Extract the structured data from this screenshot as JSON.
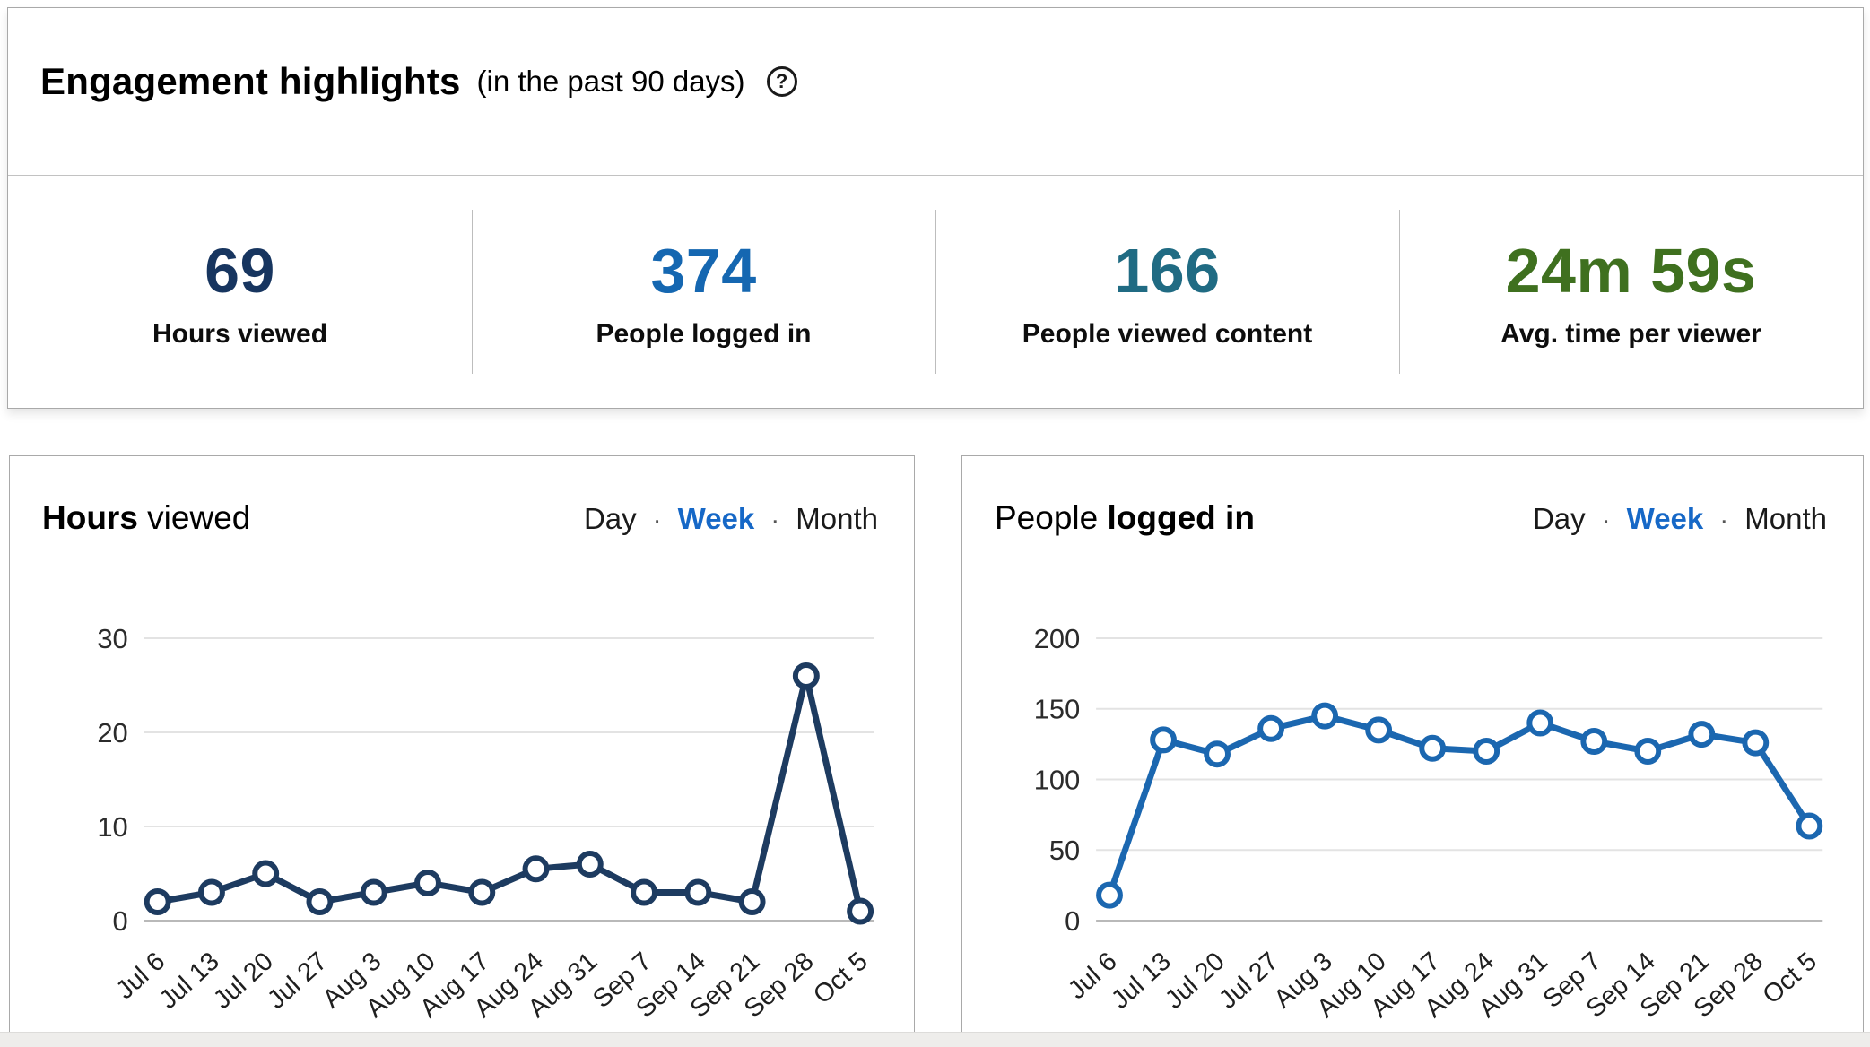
{
  "header": {
    "title": "Engagement highlights",
    "subtitle": "(in the past 90 days)",
    "help_icon": "?"
  },
  "stats": [
    {
      "value": "69",
      "label": "Hours viewed",
      "color": "#17355f"
    },
    {
      "value": "374",
      "label": "People logged in",
      "color": "#1567b1"
    },
    {
      "value": "166",
      "label": "People viewed content",
      "color": "#206b83"
    },
    {
      "value": "24m 59s",
      "label": "Avg. time per viewer",
      "color": "#3f701f"
    }
  ],
  "period_toggle": {
    "day": "Day",
    "week": "Week",
    "month": "Month",
    "separator": "·",
    "active": "Week",
    "active_color": "#1668c7"
  },
  "chart_data": [
    {
      "type": "line",
      "title_prefix": "",
      "title_bold": "Hours",
      "title_suffix": " viewed",
      "x": [
        "Jul 6",
        "Jul 13",
        "Jul 20",
        "Jul 27",
        "Aug 3",
        "Aug 10",
        "Aug 17",
        "Aug 24",
        "Aug 31",
        "Sep 7",
        "Sep 14",
        "Sep 21",
        "Sep 28",
        "Oct 5"
      ],
      "values": [
        2,
        3,
        5,
        2,
        3,
        4,
        3,
        5.5,
        6,
        3,
        3,
        2,
        26,
        1
      ],
      "yticks": [
        0,
        10,
        20,
        30
      ],
      "ylim": [
        0,
        30
      ],
      "xlabel": "",
      "ylabel": "",
      "grid": true,
      "legend": null,
      "line_color": "#1d3b60",
      "marker": "open-circle"
    },
    {
      "type": "line",
      "title_prefix": "People ",
      "title_bold": "logged in",
      "title_suffix": "",
      "x": [
        "Jul 6",
        "Jul 13",
        "Jul 20",
        "Jul 27",
        "Aug 3",
        "Aug 10",
        "Aug 17",
        "Aug 24",
        "Aug 31",
        "Sep 7",
        "Sep 14",
        "Sep 21",
        "Sep 28",
        "Oct 5"
      ],
      "values": [
        18,
        128,
        118,
        136,
        145,
        135,
        122,
        120,
        140,
        127,
        120,
        132,
        126,
        67
      ],
      "yticks": [
        0,
        50,
        100,
        150,
        200
      ],
      "ylim": [
        0,
        200
      ],
      "xlabel": "",
      "ylabel": "",
      "grid": true,
      "legend": null,
      "line_color": "#1b67b0",
      "marker": "open-circle"
    }
  ]
}
